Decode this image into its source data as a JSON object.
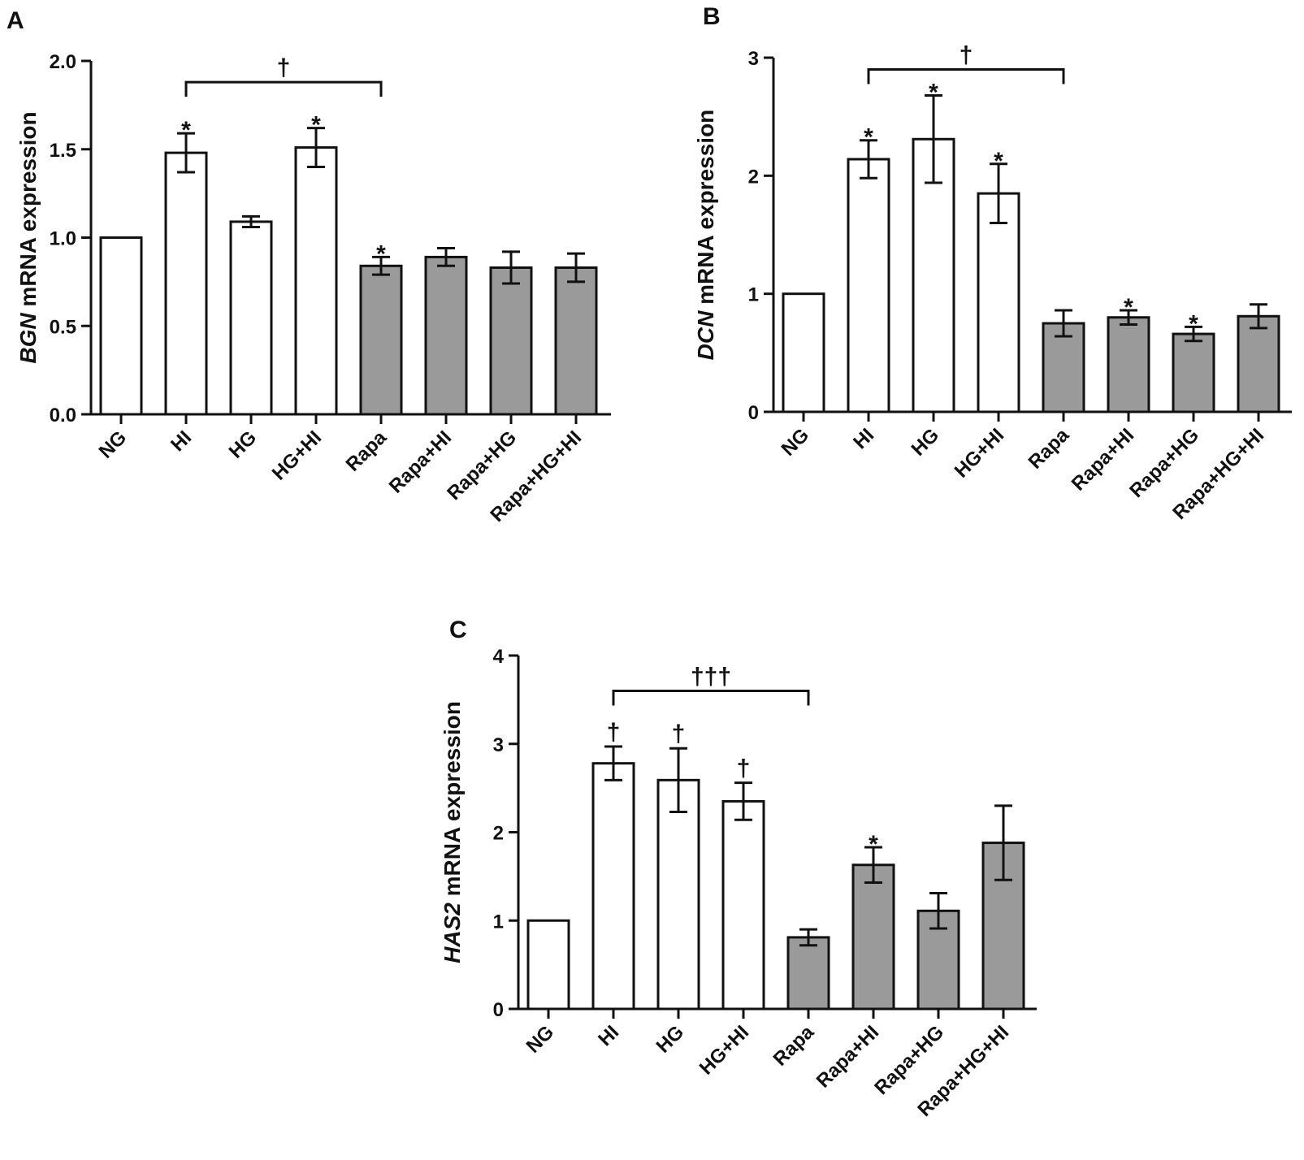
{
  "chart_data": [
    {
      "panel": "A",
      "type": "bar",
      "ylabel_gene": "BGN",
      "ylabel_rest": " mRNA expression",
      "categories": [
        "NG",
        "HI",
        "HG",
        "HG+HI",
        "Rapa",
        "Rapa+HI",
        "Rapa+HG",
        "Rapa+HG+HI"
      ],
      "values": [
        1.0,
        1.48,
        1.09,
        1.51,
        0.84,
        0.89,
        0.83,
        0.83
      ],
      "errors": [
        0,
        0.11,
        0.03,
        0.11,
        0.05,
        0.05,
        0.09,
        0.08
      ],
      "bar_colors": [
        "#ffffff",
        "#ffffff",
        "#ffffff",
        "#ffffff",
        "#9a9a9a",
        "#9a9a9a",
        "#9a9a9a",
        "#9a9a9a"
      ],
      "ylim": [
        0,
        2.0
      ],
      "yticks": [
        "0.0",
        "0.5",
        "1.0",
        "1.5",
        "2.0"
      ],
      "bar_annotations": [
        "",
        "*",
        "",
        "*",
        "*",
        "",
        "",
        ""
      ],
      "bracket": {
        "from": 1,
        "to": 4,
        "level": 1.88,
        "label": "†"
      }
    },
    {
      "panel": "B",
      "type": "bar",
      "ylabel_gene": "DCN",
      "ylabel_rest": " mRNA expression",
      "categories": [
        "NG",
        "HI",
        "HG",
        "HG+HI",
        "Rapa",
        "Rapa+HI",
        "Rapa+HG",
        "Rapa+HG+HI"
      ],
      "values": [
        1.0,
        2.14,
        2.31,
        1.85,
        0.75,
        0.8,
        0.66,
        0.81
      ],
      "errors": [
        0,
        0.16,
        0.37,
        0.25,
        0.11,
        0.06,
        0.06,
        0.1
      ],
      "bar_colors": [
        "#ffffff",
        "#ffffff",
        "#ffffff",
        "#ffffff",
        "#9a9a9a",
        "#9a9a9a",
        "#9a9a9a",
        "#9a9a9a"
      ],
      "ylim": [
        0,
        3
      ],
      "yticks": [
        "0",
        "1",
        "2",
        "3"
      ],
      "bar_annotations": [
        "",
        "*",
        "*",
        "*",
        "",
        "*",
        "*",
        ""
      ],
      "bracket": {
        "from": 1,
        "to": 4,
        "level": 2.9,
        "label": "†"
      }
    },
    {
      "panel": "C",
      "type": "bar",
      "ylabel_gene": "HAS2",
      "ylabel_rest": " mRNA expression",
      "categories": [
        "NG",
        "HI",
        "HG",
        "HG+HI",
        "Rapa",
        "Rapa+HI",
        "Rapa+HG",
        "Rapa+HG+HI"
      ],
      "values": [
        1.0,
        2.78,
        2.59,
        2.35,
        0.81,
        1.63,
        1.11,
        1.88
      ],
      "errors": [
        0,
        0.19,
        0.36,
        0.21,
        0.09,
        0.2,
        0.2,
        0.42
      ],
      "bar_colors": [
        "#ffffff",
        "#ffffff",
        "#ffffff",
        "#ffffff",
        "#9a9a9a",
        "#9a9a9a",
        "#9a9a9a",
        "#9a9a9a"
      ],
      "ylim": [
        0,
        4
      ],
      "yticks": [
        "0",
        "1",
        "2",
        "3",
        "4"
      ],
      "bar_annotations": [
        "",
        "†",
        "†",
        "†",
        "",
        "*",
        "",
        ""
      ],
      "bracket": {
        "from": 1,
        "to": 4,
        "level": 3.6,
        "label": "†††"
      }
    }
  ]
}
